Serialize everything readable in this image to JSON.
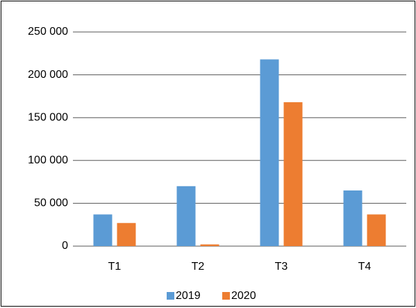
{
  "chart_data": {
    "type": "bar",
    "categories": [
      "T1",
      "T2",
      "T3",
      "T4"
    ],
    "series": [
      {
        "name": "2019",
        "color": "#5b9bd5",
        "values": [
          37000,
          70000,
          218000,
          65000
        ]
      },
      {
        "name": "2020",
        "color": "#ed7d31",
        "values": [
          27000,
          2000,
          168000,
          37000
        ]
      }
    ],
    "ylim": [
      0,
      250000
    ],
    "yticks": [
      0,
      {
        "value": 50000,
        "label": "50 000"
      },
      {
        "value": 100000,
        "label": "100 000"
      },
      {
        "value": 150000,
        "label": "150 000"
      },
      {
        "value": 200000,
        "label": "200 000"
      },
      {
        "value": 250000,
        "label": "250 000"
      }
    ],
    "grid": true,
    "legend": "bottom"
  }
}
